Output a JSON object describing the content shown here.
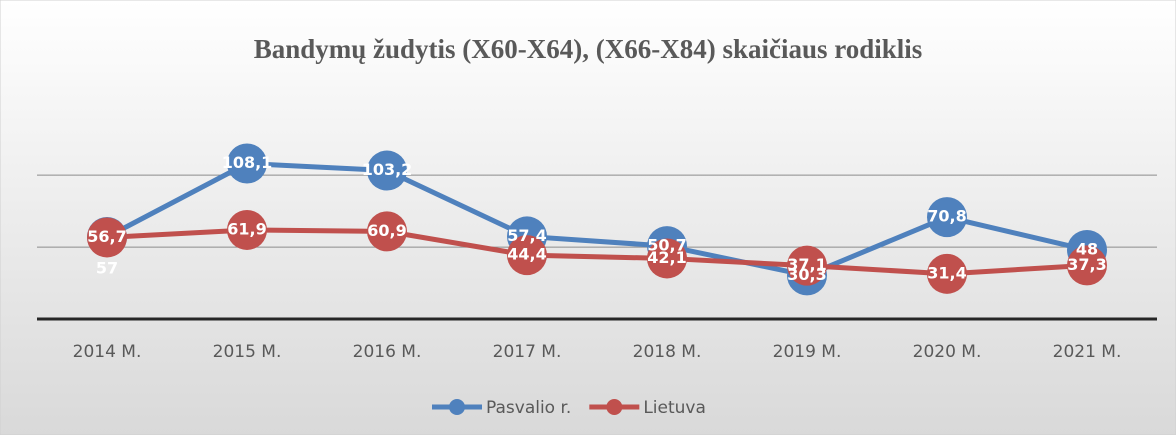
{
  "chart_data": {
    "type": "line",
    "title": "Bandymų žudytis (X60-X64), (X66-X84) skaičiaus rodiklis",
    "categories": [
      "2014 M.",
      "2015 M.",
      "2016 M.",
      "2017 M.",
      "2018 M.",
      "2019 M.",
      "2020 M.",
      "2021 M."
    ],
    "series": [
      {
        "name": "Pasvalio r.",
        "color": "#4f81bd",
        "values": [
          57,
          108.1,
          103.2,
          57.4,
          50.7,
          30.3,
          70.8,
          48
        ],
        "value_labels": [
          "57",
          "108,1",
          "103,2",
          "57,4",
          "50,7",
          "30,3",
          "70,8",
          "48"
        ]
      },
      {
        "name": "Lietuva",
        "color": "#c0504d",
        "values": [
          56.7,
          61.9,
          60.9,
          44.4,
          42.1,
          37.1,
          31.4,
          37.3
        ],
        "value_labels": [
          "56,7",
          "61,9",
          "60,9",
          "44,4",
          "42,1",
          "37,1",
          "31,4",
          "37,3"
        ]
      }
    ],
    "ylim": [
      0,
      130
    ],
    "yticks": [
      0,
      50,
      100
    ],
    "grid": true
  }
}
